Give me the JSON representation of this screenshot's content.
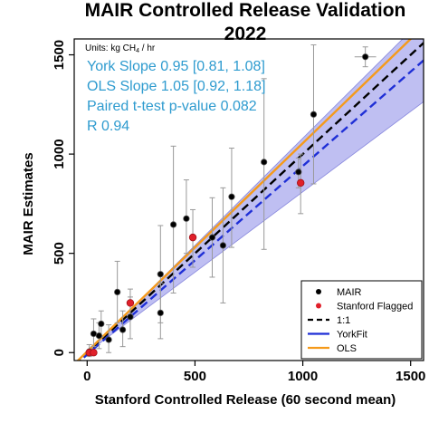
{
  "chart_data": {
    "type": "scatter",
    "title": "MAIR Controlled Release Validation",
    "subtitle": "2022",
    "xlabel": "Stanford Controlled Release (60 second mean)",
    "ylabel": "MAIR Estimates",
    "units_prefix": "Units: kg CH",
    "units_sub": "4",
    "units_suffix": " / hr",
    "xlim": [
      -60,
      1560
    ],
    "ylim": [
      -40,
      1580
    ],
    "xticks": [
      0,
      500,
      1000,
      1500
    ],
    "yticks": [
      0,
      500,
      1000,
      1500
    ],
    "grid": false,
    "stats": [
      "York Slope 0.95 [0.81, 1.08]",
      "OLS Slope 1.05 [0.92, 1.18]",
      "Paired t-test p-value 0.082",
      "R 0.94"
    ],
    "stats_color": "#2e9bcf",
    "confidence_band": {
      "slope_low": 0.81,
      "slope_high": 1.08,
      "color": "#aaaaee"
    },
    "lines": [
      {
        "name": "1:1",
        "slope": 1.0,
        "intercept": 0,
        "color": "#000000",
        "style": "dashed"
      },
      {
        "name": "YorkFit",
        "slope": 0.95,
        "intercept": -10,
        "color": "#1f2fd6",
        "style": "dashed"
      },
      {
        "name": "OLS",
        "slope": 1.05,
        "intercept": 5,
        "color": "#f59a1a",
        "style": "solid"
      }
    ],
    "series": [
      {
        "name": "MAIR",
        "color": "#000000",
        "points": [
          {
            "x": 10,
            "y": 5,
            "ylo": -20,
            "yhi": 40,
            "xlo": 0,
            "xhi": 25
          },
          {
            "x": 30,
            "y": 95,
            "ylo": 30,
            "yhi": 170
          },
          {
            "x": 55,
            "y": 85,
            "ylo": 20,
            "yhi": 150
          },
          {
            "x": 65,
            "y": 145,
            "ylo": 80,
            "yhi": 210
          },
          {
            "x": 100,
            "y": 65,
            "ylo": 0,
            "yhi": 140
          },
          {
            "x": 140,
            "y": 305,
            "ylo": 150,
            "yhi": 460
          },
          {
            "x": 165,
            "y": 115,
            "ylo": 30,
            "yhi": 210
          },
          {
            "x": 200,
            "y": 180,
            "ylo": 70,
            "yhi": 280
          },
          {
            "x": 340,
            "y": 200,
            "ylo": 70,
            "yhi": 350
          },
          {
            "x": 340,
            "y": 395,
            "ylo": 150,
            "yhi": 640
          },
          {
            "x": 400,
            "y": 645,
            "ylo": 300,
            "yhi": 1040
          },
          {
            "x": 460,
            "y": 675,
            "ylo": 500,
            "yhi": 870
          },
          {
            "x": 580,
            "y": 580,
            "ylo": 380,
            "yhi": 780
          },
          {
            "x": 630,
            "y": 540,
            "ylo": 250,
            "yhi": 830
          },
          {
            "x": 670,
            "y": 785,
            "ylo": 530,
            "yhi": 1030
          },
          {
            "x": 820,
            "y": 960,
            "ylo": 520,
            "yhi": 1380
          },
          {
            "x": 980,
            "y": 910,
            "ylo": 830,
            "yhi": 980
          },
          {
            "x": 1050,
            "y": 1200,
            "ylo": 850,
            "yhi": 1550
          },
          {
            "x": 1290,
            "y": 1490,
            "ylo": 1440,
            "yhi": 1540,
            "xlo": 1240,
            "xhi": 1340
          }
        ]
      },
      {
        "name": "Stanford Flagged",
        "color": "#e0202a",
        "points": [
          {
            "x": 10,
            "y": 0
          },
          {
            "x": 30,
            "y": 0
          },
          {
            "x": 200,
            "y": 250,
            "ylo": 190,
            "yhi": 320
          },
          {
            "x": 490,
            "y": 580,
            "ylo": 430,
            "yhi": 720
          },
          {
            "x": 990,
            "y": 855,
            "ylo": 700,
            "yhi": 1000
          }
        ]
      }
    ],
    "legend": {
      "placement": "bottom-right",
      "entries": [
        "MAIR",
        "Stanford Flagged",
        "1:1",
        "YorkFit",
        "OLS"
      ]
    }
  }
}
